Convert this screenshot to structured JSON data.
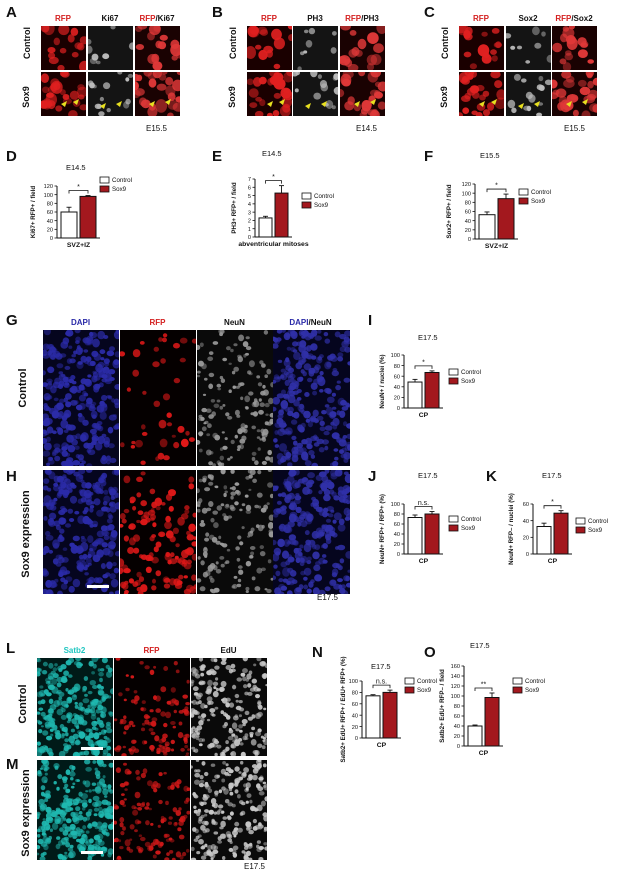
{
  "panels": {
    "A": {
      "letter": "A",
      "titles": [
        {
          "parts": [
            {
              "t": "RFP",
              "c": "red"
            }
          ]
        },
        {
          "parts": [
            {
              "t": "Ki67",
              "c": "black"
            }
          ]
        },
        {
          "parts": [
            {
              "t": "RFP",
              "c": "red"
            },
            {
              "t": "/Ki67",
              "c": "black"
            }
          ]
        }
      ],
      "rows": [
        "Control",
        "Sox9"
      ],
      "stage": "E15.5"
    },
    "B": {
      "letter": "B",
      "titles": [
        {
          "parts": [
            {
              "t": "RFP",
              "c": "red"
            }
          ]
        },
        {
          "parts": [
            {
              "t": "PH3",
              "c": "black"
            }
          ]
        },
        {
          "parts": [
            {
              "t": "RFP",
              "c": "red"
            },
            {
              "t": "/PH3",
              "c": "black"
            }
          ]
        }
      ],
      "rows": [
        "Control",
        "Sox9"
      ],
      "stage": "E14.5"
    },
    "C": {
      "letter": "C",
      "titles": [
        {
          "parts": [
            {
              "t": "RFP",
              "c": "red"
            }
          ]
        },
        {
          "parts": [
            {
              "t": "Sox2",
              "c": "black"
            }
          ]
        },
        {
          "parts": [
            {
              "t": "RFP",
              "c": "red"
            },
            {
              "t": "/Sox2",
              "c": "black"
            }
          ]
        }
      ],
      "rows": [
        "Control",
        "Sox9"
      ],
      "stage": "E15.5"
    },
    "G": {
      "letter": "G",
      "titles": [
        {
          "parts": [
            {
              "t": "DAPI",
              "c": "blue"
            }
          ]
        },
        {
          "parts": [
            {
              "t": "RFP",
              "c": "red"
            }
          ]
        },
        {
          "parts": [
            {
              "t": "NeuN",
              "c": "black"
            }
          ]
        },
        {
          "parts": [
            {
              "t": "DAPI",
              "c": "blue"
            },
            {
              "t": "/NeuN",
              "c": "black"
            }
          ]
        }
      ],
      "row": "Control"
    },
    "H": {
      "letter": "H",
      "row": "Sox9 expression",
      "stage": "E17.5"
    },
    "L": {
      "letter": "L",
      "titles": [
        {
          "parts": [
            {
              "t": "Satb2",
              "c": "cyan"
            }
          ]
        },
        {
          "parts": [
            {
              "t": "RFP",
              "c": "red"
            }
          ]
        },
        {
          "parts": [
            {
              "t": "EdU",
              "c": "black"
            }
          ]
        }
      ],
      "row": "Control"
    },
    "M": {
      "letter": "M",
      "row": "Sox9 expression",
      "stage": "E17.5"
    }
  },
  "legend": {
    "control": "Control",
    "sox9": "Sox9"
  },
  "colors": {
    "control": "#ffffff",
    "sox9": "#a3181e",
    "red": "#d42020",
    "blue": "#2a2aa8",
    "cyan": "#1fc6c0"
  },
  "chart_data": [
    {
      "id": "D",
      "type": "bar",
      "title": "E14.5",
      "ylabel": "Ki67+ RFP+ / field",
      "categories": [
        "SVZ+IZ"
      ],
      "ylim": [
        0,
        120
      ],
      "yticks": [
        0,
        20,
        40,
        60,
        80,
        100,
        120
      ],
      "series": [
        {
          "name": "Control",
          "values": [
            60
          ],
          "err": [
            11
          ]
        },
        {
          "name": "Sox9",
          "values": [
            96
          ],
          "err": [
            2
          ]
        }
      ],
      "significance": "*"
    },
    {
      "id": "E",
      "type": "bar",
      "title": "E14.5",
      "ylabel": "PH3+ RFP+ / field",
      "categories": [
        "abventricular mitoses"
      ],
      "ylim": [
        0,
        7
      ],
      "yticks": [
        0,
        1,
        2,
        3,
        4,
        5,
        6,
        7
      ],
      "series": [
        {
          "name": "Control",
          "values": [
            2.3
          ],
          "err": [
            0.2
          ]
        },
        {
          "name": "Sox9",
          "values": [
            5.3
          ],
          "err": [
            0.9
          ]
        }
      ],
      "significance": "*"
    },
    {
      "id": "F",
      "type": "bar",
      "title": "E15.5",
      "ylabel": "Sox2+ RFP+ / field",
      "categories": [
        "SVZ+IZ"
      ],
      "ylim": [
        0,
        120
      ],
      "yticks": [
        0,
        20,
        40,
        60,
        80,
        100,
        120
      ],
      "series": [
        {
          "name": "Control",
          "values": [
            53
          ],
          "err": [
            6
          ]
        },
        {
          "name": "Sox9",
          "values": [
            88
          ],
          "err": [
            10
          ]
        }
      ],
      "significance": "*"
    },
    {
      "id": "I",
      "type": "bar",
      "title": "E17.5",
      "ylabel": "NeuN+ / nuclei (%)",
      "categories": [
        "CP"
      ],
      "ylim": [
        0,
        100
      ],
      "yticks": [
        0,
        20,
        40,
        60,
        80,
        100
      ],
      "series": [
        {
          "name": "Control",
          "values": [
            49
          ],
          "err": [
            5
          ]
        },
        {
          "name": "Sox9",
          "values": [
            67
          ],
          "err": [
            3
          ]
        }
      ],
      "significance": "*"
    },
    {
      "id": "J",
      "type": "bar",
      "title": "E17.5",
      "ylabel": "NeuN+ RFP+ / RFP+ (%)",
      "categories": [
        "CP"
      ],
      "ylim": [
        0,
        100
      ],
      "yticks": [
        0,
        20,
        40,
        60,
        80,
        100
      ],
      "series": [
        {
          "name": "Control",
          "values": [
            73
          ],
          "err": [
            5
          ]
        },
        {
          "name": "Sox9",
          "values": [
            80
          ],
          "err": [
            5
          ]
        }
      ],
      "significance": "n.s."
    },
    {
      "id": "K",
      "type": "bar",
      "title": "E17.5",
      "ylabel": "NeuN+ RFP– / nuclei (%)",
      "categories": [
        "CP"
      ],
      "ylim": [
        0,
        60
      ],
      "yticks": [
        0,
        20,
        40,
        60
      ],
      "series": [
        {
          "name": "Control",
          "values": [
            33
          ],
          "err": [
            4
          ]
        },
        {
          "name": "Sox9",
          "values": [
            49
          ],
          "err": [
            3
          ]
        }
      ],
      "significance": "*"
    },
    {
      "id": "N",
      "type": "bar",
      "title": "E17.5",
      "ylabel": "Satb2+ EdU+ RFP+ / EdU+ RFP+ (%)",
      "categories": [
        "CP"
      ],
      "ylim": [
        0,
        100
      ],
      "yticks": [
        0,
        20,
        40,
        60,
        80,
        100
      ],
      "series": [
        {
          "name": "Control",
          "values": [
            74
          ],
          "err": [
            2
          ]
        },
        {
          "name": "Sox9",
          "values": [
            80
          ],
          "err": [
            4
          ]
        }
      ],
      "significance": "n.s."
    },
    {
      "id": "O",
      "type": "bar",
      "title": "E17.5",
      "ylabel": "Satb2+ EdU+ RFP– / field",
      "categories": [
        "CP"
      ],
      "ylim": [
        0,
        160
      ],
      "yticks": [
        0,
        20,
        40,
        60,
        80,
        100,
        120,
        140,
        160
      ],
      "series": [
        {
          "name": "Control",
          "values": [
            40
          ],
          "err": [
            2
          ]
        },
        {
          "name": "Sox9",
          "values": [
            97
          ],
          "err": [
            9
          ]
        }
      ],
      "significance": "**"
    }
  ]
}
